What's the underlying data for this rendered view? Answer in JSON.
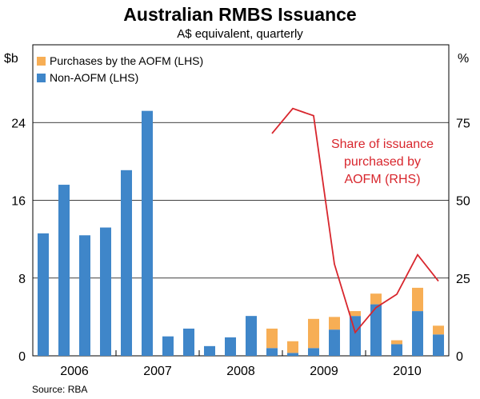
{
  "chart_data": {
    "type": "bar",
    "title": "Australian RMBS Issuance",
    "subtitle": "A$ equivalent, quarterly",
    "left_axis_label": "$b",
    "right_axis_label": "%",
    "left_ylim": [
      0,
      32
    ],
    "right_ylim": [
      0,
      100
    ],
    "left_ticks": [
      "0",
      "8",
      "16",
      "24"
    ],
    "right_ticks": [
      "0",
      "25",
      "50",
      "75"
    ],
    "left_tick_values": [
      0,
      8,
      16,
      24
    ],
    "right_tick_values": [
      0,
      25,
      50,
      75
    ],
    "year_labels": [
      "2006",
      "2007",
      "2008",
      "2009",
      "2010"
    ],
    "year_quarter_start_index": [
      0,
      4,
      8,
      12,
      16
    ],
    "categories": [
      "2006Q1",
      "2006Q2",
      "2006Q3",
      "2006Q4",
      "2007Q1",
      "2007Q2",
      "2007Q3",
      "2007Q4",
      "2008Q1",
      "2008Q2",
      "2008Q3",
      "2008Q4",
      "2009Q1",
      "2009Q2",
      "2009Q3",
      "2009Q4",
      "2010Q1",
      "2010Q2",
      "2010Q3",
      "2010Q4"
    ],
    "series": [
      {
        "name": "Non-AOFM (LHS)",
        "color": "#3f86c9",
        "values": [
          12.6,
          17.6,
          12.4,
          13.2,
          19.1,
          25.2,
          2.0,
          2.8,
          1.0,
          1.9,
          4.1,
          0.8,
          0.3,
          0.8,
          2.7,
          4.1,
          5.3,
          1.2,
          4.6,
          2.2
        ]
      },
      {
        "name": "Purchases by the AOFM (LHS)",
        "color": "#f7ae55",
        "values": [
          0,
          0,
          0,
          0,
          0,
          0,
          0,
          0,
          0,
          0,
          0,
          2.0,
          1.2,
          3.0,
          1.3,
          0.5,
          1.1,
          0.4,
          2.4,
          0.9
        ]
      }
    ],
    "line_series": {
      "name": "Share of issuance purchased by AOFM (RHS)",
      "color": "#d8262d",
      "start_index": 11,
      "values": [
        71.5,
        79.5,
        77.2,
        29.5,
        7.5,
        15.5,
        19.8,
        32.5,
        24.0
      ]
    },
    "legend": [
      "Purchases by the AOFM (LHS)",
      "Non-AOFM (LHS)"
    ],
    "annotation": [
      "Share of issuance",
      "purchased by",
      "AOFM (RHS)"
    ],
    "source": "Source: RBA"
  }
}
